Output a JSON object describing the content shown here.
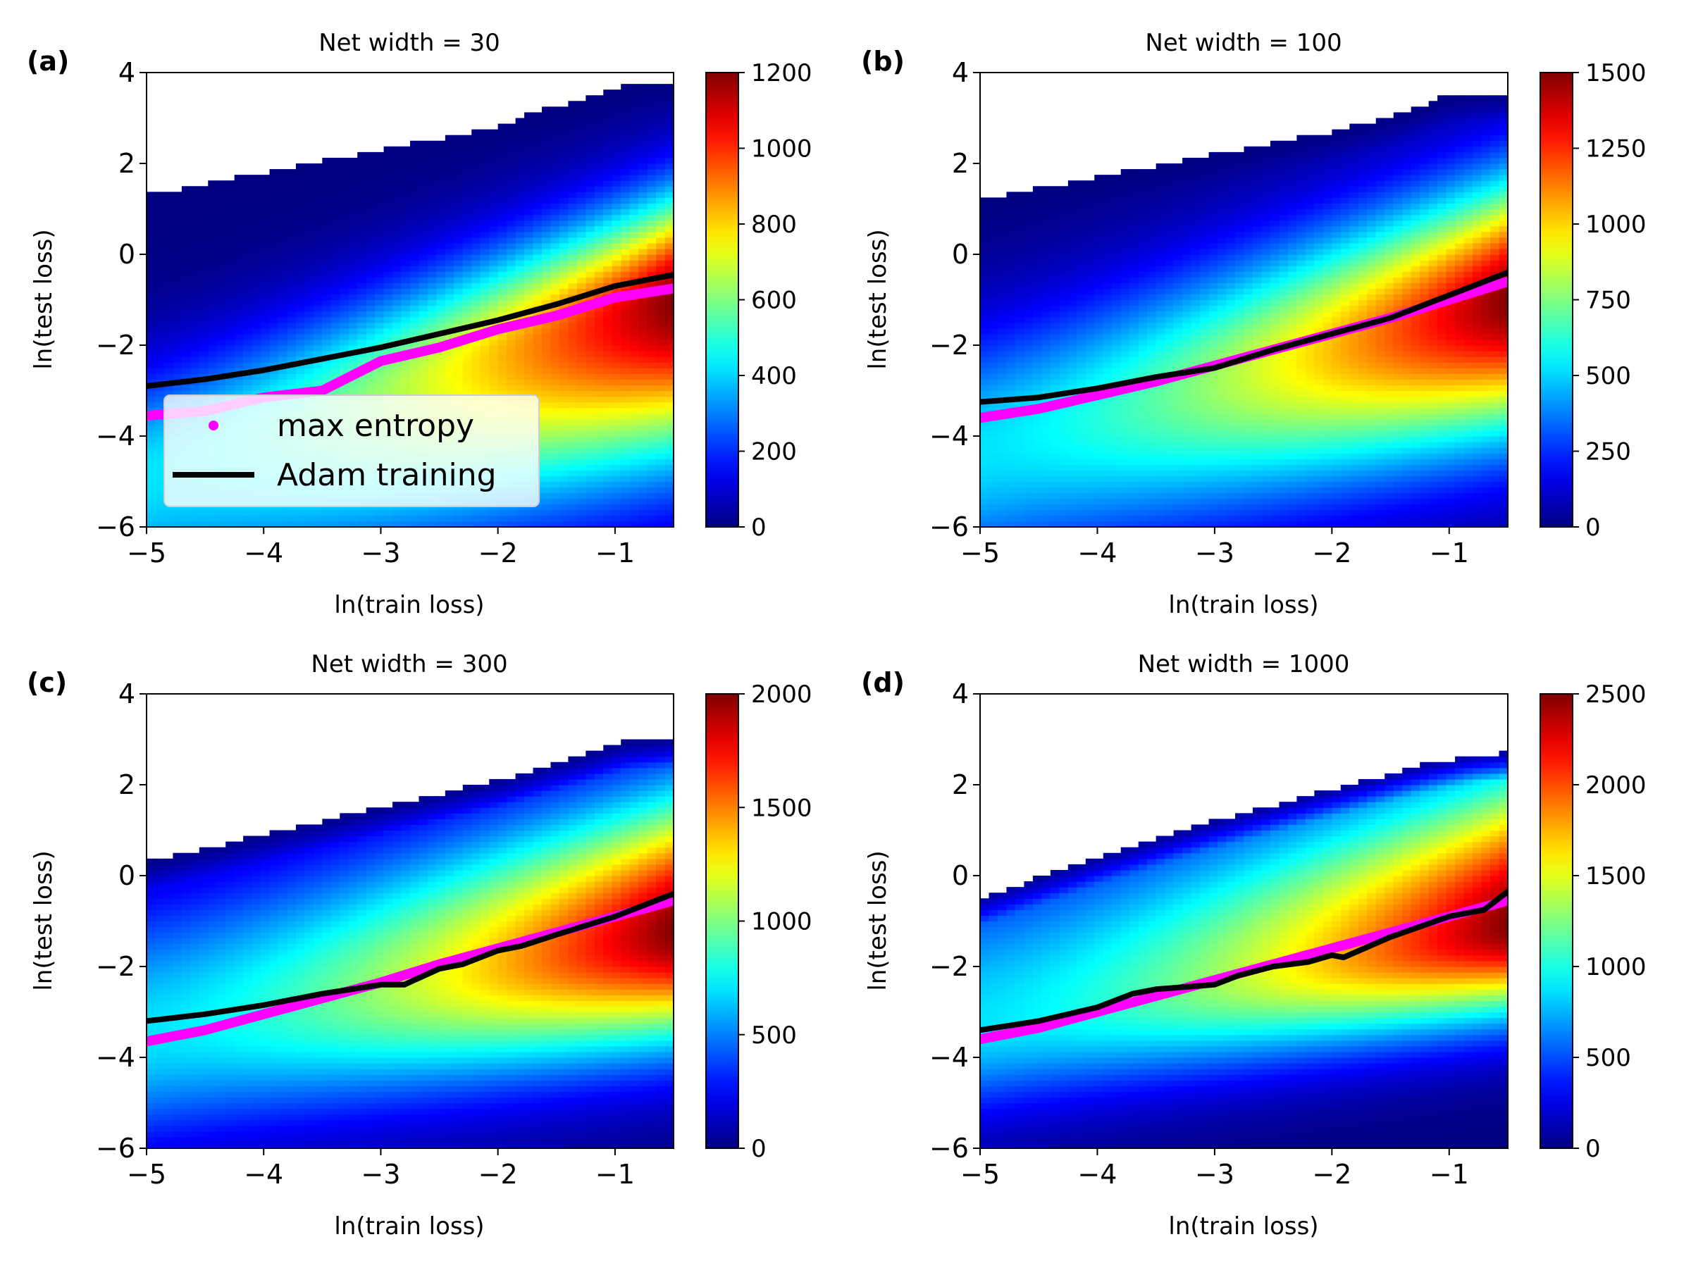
{
  "figure": {
    "legend": {
      "items": [
        {
          "label": "max entropy",
          "color": "#ff00ff",
          "marker": "dot"
        },
        {
          "label": "Adam training",
          "color": "#000000",
          "marker": "line"
        }
      ],
      "placement": "lower-left of panel (a)"
    },
    "colormap": "jet"
  },
  "chart_data": [
    {
      "panel": "(a)",
      "type": "heatmap",
      "title": "Net width = 30",
      "xlabel": "ln(train loss)",
      "ylabel": "ln(test loss)",
      "xlim": [
        -5,
        -0.5
      ],
      "ylim": [
        -6,
        4
      ],
      "xticks": [
        "−5",
        "−4",
        "−3",
        "−2",
        "−1"
      ],
      "xtick_values": [
        -5,
        -4,
        -3,
        -2,
        -1
      ],
      "yticks": [
        "−6",
        "−4",
        "−2",
        "0",
        "2",
        "4"
      ],
      "ytick_values": [
        -6,
        -4,
        -2,
        0,
        2,
        4
      ],
      "colorbar": {
        "min": 0,
        "max": 1200,
        "ticks": [
          "0",
          "200",
          "400",
          "600",
          "800",
          "1000",
          "1200"
        ],
        "tick_values": [
          0,
          200,
          400,
          600,
          800,
          1000,
          1200
        ]
      },
      "support_upper_edge": {
        "x": [
          -5,
          -4,
          -3,
          -2,
          -1.6,
          -1.2,
          -0.8,
          -0.5
        ],
        "y": [
          1.3,
          1.8,
          2.3,
          2.8,
          3.2,
          3.45,
          3.8,
          3.8
        ]
      },
      "density_ridge": {
        "x": [
          -5,
          -0.5
        ],
        "y": [
          -4.8,
          -1.0
        ],
        "peak_x": -0.5,
        "peak_y": -1.2
      },
      "series": [
        {
          "name": "max entropy",
          "x": [
            -5,
            -4.5,
            -4,
            -3.5,
            -3,
            -2.5,
            -2,
            -1.5,
            -1,
            -0.5
          ],
          "y": [
            -3.55,
            -3.45,
            -3.15,
            -3.0,
            -2.35,
            -2.05,
            -1.65,
            -1.35,
            -0.95,
            -0.75
          ]
        },
        {
          "name": "Adam training",
          "x": [
            -5,
            -4.5,
            -4,
            -3.5,
            -3,
            -2.5,
            -2,
            -1.5,
            -1,
            -0.5
          ],
          "y": [
            -2.9,
            -2.75,
            -2.55,
            -2.3,
            -2.05,
            -1.75,
            -1.45,
            -1.1,
            -0.7,
            -0.45
          ]
        }
      ]
    },
    {
      "panel": "(b)",
      "type": "heatmap",
      "title": "Net width = 100",
      "xlabel": "ln(train loss)",
      "ylabel": "ln(test loss)",
      "xlim": [
        -5,
        -0.5
      ],
      "ylim": [
        -6,
        4
      ],
      "xticks": [
        "−5",
        "−4",
        "−3",
        "−2",
        "−1"
      ],
      "xtick_values": [
        -5,
        -4,
        -3,
        -2,
        -1
      ],
      "yticks": [
        "−6",
        "−4",
        "−2",
        "0",
        "2",
        "4"
      ],
      "ytick_values": [
        -6,
        -4,
        -2,
        0,
        2,
        4
      ],
      "colorbar": {
        "min": 0,
        "max": 1500,
        "ticks": [
          "0",
          "250",
          "500",
          "750",
          "1000",
          "1250",
          "1500"
        ],
        "tick_values": [
          0,
          250,
          500,
          750,
          1000,
          1250,
          1500
        ]
      },
      "support_upper_edge": {
        "x": [
          -5,
          -4,
          -3,
          -2,
          -1.4,
          -1.0,
          -0.5
        ],
        "y": [
          1.2,
          1.7,
          2.2,
          2.7,
          3.1,
          3.5,
          3.55
        ]
      },
      "density_ridge": {
        "x": [
          -5,
          -0.5
        ],
        "y": [
          -4.3,
          -1.0
        ],
        "peak_x": -0.6,
        "peak_y": -1.3
      },
      "series": [
        {
          "name": "max entropy",
          "x": [
            -5,
            -4.5,
            -4,
            -3.5,
            -3,
            -2.5,
            -2,
            -1.5,
            -1,
            -0.5
          ],
          "y": [
            -3.6,
            -3.4,
            -3.1,
            -2.8,
            -2.45,
            -2.1,
            -1.75,
            -1.4,
            -1.0,
            -0.6
          ]
        },
        {
          "name": "Adam training",
          "x": [
            -5,
            -4.5,
            -4,
            -3.5,
            -3,
            -2.5,
            -2,
            -1.5,
            -1,
            -0.5
          ],
          "y": [
            -3.25,
            -3.15,
            -2.95,
            -2.7,
            -2.5,
            -2.1,
            -1.75,
            -1.4,
            -0.9,
            -0.4
          ]
        }
      ]
    },
    {
      "panel": "(c)",
      "type": "heatmap",
      "title": "Net width = 300",
      "xlabel": "ln(train loss)",
      "ylabel": "ln(test loss)",
      "xlim": [
        -5,
        -0.5
      ],
      "ylim": [
        -6,
        4
      ],
      "xticks": [
        "−5",
        "−4",
        "−3",
        "−2",
        "−1"
      ],
      "xtick_values": [
        -5,
        -4,
        -3,
        -2,
        -1
      ],
      "yticks": [
        "−6",
        "−4",
        "−2",
        "0",
        "2",
        "4"
      ],
      "ytick_values": [
        -6,
        -4,
        -2,
        0,
        2,
        4
      ],
      "colorbar": {
        "min": 0,
        "max": 2000,
        "ticks": [
          "0",
          "500",
          "1000",
          "1500",
          "2000"
        ],
        "tick_values": [
          0,
          500,
          1000,
          1500,
          2000
        ]
      },
      "support_upper_edge": {
        "x": [
          -5,
          -4,
          -3,
          -2,
          -1.2,
          -0.9,
          -0.5
        ],
        "y": [
          0.3,
          0.9,
          1.5,
          2.1,
          2.7,
          2.95,
          3.0
        ]
      },
      "density_ridge": {
        "x": [
          -5,
          -0.5
        ],
        "y": [
          -3.5,
          -1.2
        ],
        "peak_x": -0.6,
        "peak_y": -1.5
      },
      "series": [
        {
          "name": "max entropy",
          "x": [
            -5,
            -4.5,
            -4,
            -3.5,
            -3,
            -2.5,
            -2,
            -1.5,
            -1,
            -0.5
          ],
          "y": [
            -3.65,
            -3.4,
            -3.05,
            -2.7,
            -2.35,
            -1.95,
            -1.6,
            -1.25,
            -0.9,
            -0.55
          ]
        },
        {
          "name": "Adam training",
          "x": [
            -5,
            -4.5,
            -4,
            -3.5,
            -3,
            -2.8,
            -2.5,
            -2.3,
            -2,
            -1.8,
            -1.5,
            -1,
            -0.5
          ],
          "y": [
            -3.2,
            -3.05,
            -2.85,
            -2.6,
            -2.4,
            -2.4,
            -2.05,
            -1.95,
            -1.65,
            -1.55,
            -1.3,
            -0.9,
            -0.4
          ]
        }
      ]
    },
    {
      "panel": "(d)",
      "type": "heatmap",
      "title": "Net width = 1000",
      "xlabel": "ln(train loss)",
      "ylabel": "ln(test loss)",
      "xlim": [
        -5,
        -0.5
      ],
      "ylim": [
        -6,
        4
      ],
      "xticks": [
        "−5",
        "−4",
        "−3",
        "−2",
        "−1"
      ],
      "xtick_values": [
        -5,
        -4,
        -3,
        -2,
        -1
      ],
      "yticks": [
        "−6",
        "−4",
        "−2",
        "0",
        "2",
        "4"
      ],
      "ytick_values": [
        -6,
        -4,
        -2,
        0,
        2,
        4
      ],
      "colorbar": {
        "min": 0,
        "max": 2500,
        "ticks": [
          "0",
          "500",
          "1000",
          "1500",
          "2000",
          "2500"
        ],
        "tick_values": [
          0,
          500,
          1000,
          1500,
          2000,
          2500
        ]
      },
      "support_upper_edge": {
        "x": [
          -5,
          -4,
          -3,
          -2,
          -1.2,
          -0.8,
          -0.5
        ],
        "y": [
          -0.5,
          0.4,
          1.2,
          1.9,
          2.45,
          2.65,
          2.7
        ]
      },
      "density_ridge": {
        "x": [
          -5,
          -0.5
        ],
        "y": [
          -3.3,
          -1.1
        ],
        "peak_x": -0.6,
        "peak_y": -1.4
      },
      "series": [
        {
          "name": "max entropy",
          "x": [
            -5,
            -4.5,
            -4,
            -3.5,
            -3,
            -2.5,
            -2,
            -1.5,
            -1,
            -0.5
          ],
          "y": [
            -3.6,
            -3.35,
            -3.0,
            -2.65,
            -2.3,
            -1.95,
            -1.6,
            -1.25,
            -0.9,
            -0.55
          ]
        },
        {
          "name": "Adam training",
          "x": [
            -5,
            -4.5,
            -4,
            -3.7,
            -3.5,
            -3,
            -2.8,
            -2.5,
            -2.2,
            -2,
            -1.9,
            -1.5,
            -1,
            -0.7,
            -0.5
          ],
          "y": [
            -3.4,
            -3.2,
            -2.9,
            -2.6,
            -2.5,
            -2.4,
            -2.2,
            -2.0,
            -1.9,
            -1.75,
            -1.8,
            -1.35,
            -0.9,
            -0.75,
            -0.35
          ]
        }
      ]
    }
  ]
}
